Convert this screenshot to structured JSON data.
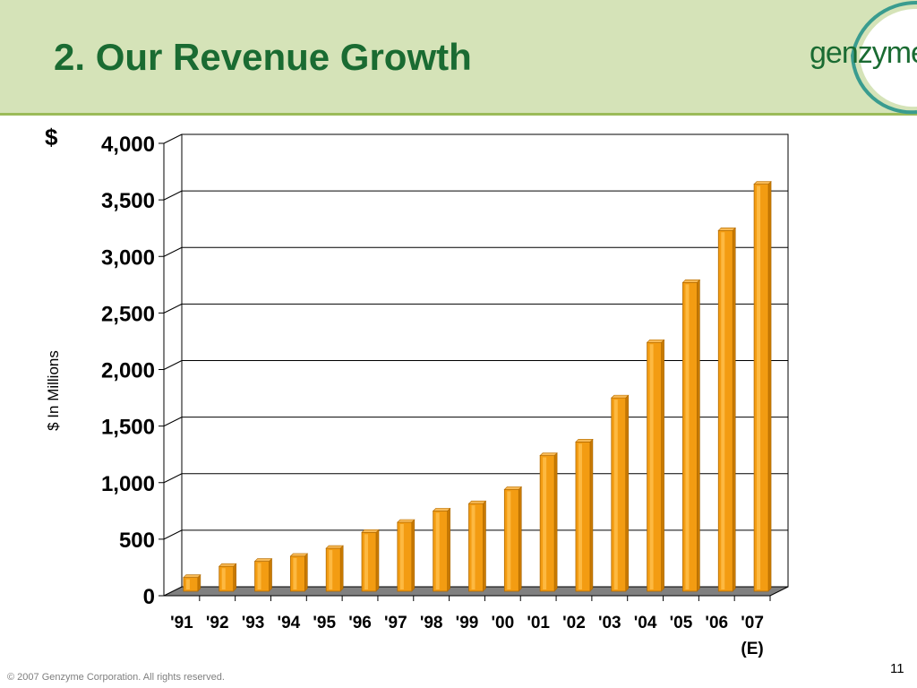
{
  "slide": {
    "title": "2. Our Revenue Growth",
    "logo_text": "genzyme",
    "currency_label": "$",
    "footer": "© 2007 Genzyme Corporation. All rights reserved.",
    "page_number": "11"
  },
  "colors": {
    "header_band": "#d5e3b8",
    "title_green": "#1a6b32",
    "bar_orange": "#f39c12",
    "floor_gray": "#808080"
  },
  "chart_data": {
    "type": "bar",
    "ylabel": "$ In Millions",
    "ylim": [
      0,
      4000
    ],
    "yticks": [
      0,
      500,
      1000,
      1500,
      2000,
      2500,
      3000,
      3500,
      4000
    ],
    "ytick_labels": [
      "0",
      "500",
      "1,000",
      "1,500",
      "2,000",
      "2,500",
      "3,000",
      "3,500",
      "4,000"
    ],
    "categories": [
      "'91",
      "'92",
      "'93",
      "'94",
      "'95",
      "'96",
      "'97",
      "'98",
      "'99",
      "'00",
      "'01",
      "'02",
      "'03",
      "'04",
      "'05",
      "'06",
      "'07\n(E)"
    ],
    "category_labels": [
      [
        "'91"
      ],
      [
        "'92"
      ],
      [
        "'93"
      ],
      [
        "'94"
      ],
      [
        "'95"
      ],
      [
        "'96"
      ],
      [
        "'97"
      ],
      [
        "'98"
      ],
      [
        "'99"
      ],
      [
        "'00"
      ],
      [
        "'01"
      ],
      [
        "'02"
      ],
      [
        "'03"
      ],
      [
        "'04"
      ],
      [
        "'05"
      ],
      [
        "'06"
      ],
      [
        "'07",
        "(E)"
      ]
    ],
    "values": [
      122,
      220,
      265,
      310,
      380,
      520,
      610,
      710,
      775,
      900,
      1200,
      1320,
      1710,
      2200,
      2730,
      3190,
      3600
    ],
    "grid": true,
    "legend": "none"
  }
}
